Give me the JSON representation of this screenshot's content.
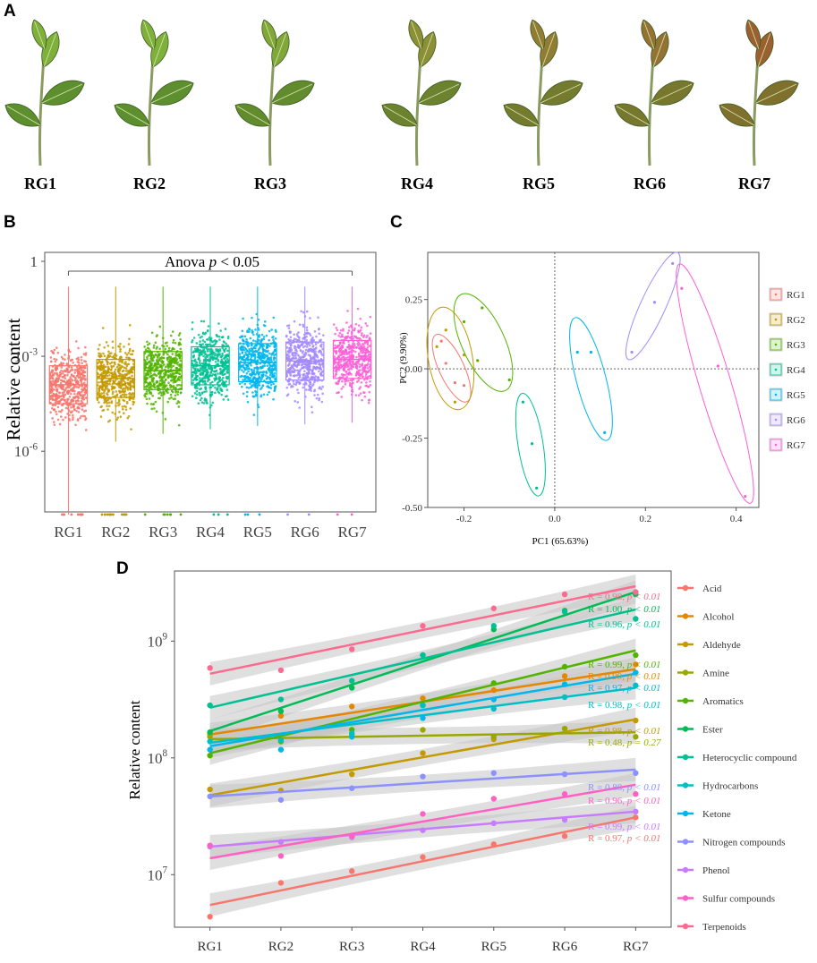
{
  "panels": {
    "a": "A",
    "b": "B",
    "c": "C",
    "d": "D"
  },
  "leaves": [
    "RG1",
    "RG2",
    "RG3",
    "RG4",
    "RG5",
    "RG6",
    "RG7"
  ],
  "groups": [
    "RG1",
    "RG2",
    "RG3",
    "RG4",
    "RG5",
    "RG6",
    "RG7"
  ],
  "colors": {
    "groups": [
      "#f8766d",
      "#c49a00",
      "#53b400",
      "#00c094",
      "#00b6eb",
      "#a58aff",
      "#fb61d7"
    ],
    "leaf_green": "#5e8f2e",
    "leaf_red": "#a0522d",
    "ci_band": "#c4c4c4"
  },
  "chart_data": [
    {
      "panel": "B",
      "type": "scatter",
      "title": "",
      "ylabel": "Relative content",
      "xlabel": "",
      "categories": [
        "RG1",
        "RG2",
        "RG3",
        "RG4",
        "RG5",
        "RG6",
        "RG7"
      ],
      "yscale": "log10",
      "ytick_labels": [
        "1",
        "10^-3",
        "10^-6"
      ],
      "yticks_log10": [
        0,
        -3,
        -6
      ],
      "median_log10": [
        -3.9,
        -3.7,
        -3.45,
        -3.3,
        -3.2,
        -3.15,
        -3.1
      ],
      "annotation": "Anova p < 0.05",
      "annotation_parts": {
        "prefix": "Anova ",
        "italic": "p",
        "suffix": " < 0.05"
      }
    },
    {
      "panel": "C",
      "type": "scatter",
      "xlabel": "PC1 (65.63%)",
      "ylabel": "PC2 (9.90%)",
      "xlim": [
        -0.28,
        0.45
      ],
      "ylim": [
        -0.5,
        0.42
      ],
      "xticks": [
        -0.2,
        0.0,
        0.2,
        0.4
      ],
      "xtick_labels": [
        "-0.2",
        "0.0",
        "0.2",
        "0.4"
      ],
      "yticks": [
        0.25,
        0.0,
        -0.25,
        -0.5
      ],
      "ytick_labels": [
        "0.25",
        "0.00",
        "-0.25",
        "-0.50"
      ],
      "legend": [
        "RG1",
        "RG2",
        "RG3",
        "RG4",
        "RG5",
        "RG6",
        "RG7"
      ],
      "series": [
        {
          "name": "RG1",
          "points": [
            [
              -0.25,
              0.1
            ],
            [
              -0.22,
              -0.05
            ],
            [
              -0.2,
              -0.06
            ],
            [
              -0.24,
              0.02
            ]
          ]
        },
        {
          "name": "RG2",
          "points": [
            [
              -0.26,
              0.08
            ],
            [
              -0.22,
              -0.12
            ],
            [
              -0.2,
              0.05
            ],
            [
              -0.24,
              0.14
            ]
          ]
        },
        {
          "name": "RG3",
          "points": [
            [
              -0.2,
              0.17
            ],
            [
              -0.16,
              0.22
            ],
            [
              -0.1,
              -0.04
            ],
            [
              -0.17,
              0.03
            ]
          ]
        },
        {
          "name": "RG4",
          "points": [
            [
              -0.07,
              -0.12
            ],
            [
              -0.05,
              -0.27
            ],
            [
              -0.04,
              -0.43
            ]
          ]
        },
        {
          "name": "RG5",
          "points": [
            [
              0.05,
              0.06
            ],
            [
              0.08,
              0.06
            ],
            [
              0.11,
              -0.23
            ]
          ]
        },
        {
          "name": "RG6",
          "points": [
            [
              0.17,
              0.06
            ],
            [
              0.22,
              0.24
            ],
            [
              0.26,
              0.38
            ]
          ]
        },
        {
          "name": "RG7",
          "points": [
            [
              0.28,
              0.29
            ],
            [
              0.36,
              0.01
            ],
            [
              0.42,
              -0.46
            ]
          ]
        }
      ]
    },
    {
      "panel": "D",
      "type": "line",
      "ylabel": "Relative content",
      "xlabel": "",
      "categories": [
        "RG1",
        "RG2",
        "RG3",
        "RG4",
        "RG5",
        "RG6",
        "RG7"
      ],
      "yscale": "log10",
      "ytick_labels": [
        "10^9",
        "10^8",
        "10^7"
      ],
      "yticks_log10": [
        9,
        8,
        7
      ],
      "series": [
        {
          "name": "Acid",
          "color": "#f8766d",
          "start": 6.74,
          "end": 7.49,
          "r": "R = 0.97, ",
          "p": "p < 0.01",
          "label_order": 12,
          "points": [
            6.64,
            6.93,
            7.03,
            7.15,
            7.26,
            7.33,
            7.49
          ]
        },
        {
          "name": "Alcohol",
          "color": "#e58700",
          "start": 8.2,
          "end": 8.76,
          "r": "R = 0.99, ",
          "p": "p < 0.01",
          "label_order": 5,
          "points": [
            8.2,
            8.36,
            8.44,
            8.51,
            8.58,
            8.7,
            8.8
          ]
        },
        {
          "name": "Aldehyde",
          "color": "#c49a00",
          "start": 7.68,
          "end": 8.33,
          "r": "R = 0.98, ",
          "p": "p < 0.01",
          "label_order": 8,
          "points": [
            7.73,
            7.72,
            7.86,
            8.04,
            8.16,
            8.25,
            8.32
          ]
        },
        {
          "name": "Amine",
          "color": "#99a800",
          "start": 8.16,
          "end": 8.22,
          "r": "R = 0.48, ",
          "p": "p = 0.27",
          "label_order": 9,
          "points": [
            8.18,
            8.15,
            8.2,
            8.24,
            8.18,
            8.25,
            8.18
          ]
        },
        {
          "name": "Aromatics",
          "color": "#53b400",
          "start": 8.04,
          "end": 8.92,
          "r": "R = 0.99, ",
          "p": "p < 0.01",
          "label_order": 4,
          "points": [
            8.02,
            8.14,
            8.24,
            8.45,
            8.64,
            8.78,
            8.88
          ]
        },
        {
          "name": "Ester",
          "color": "#00bc56",
          "start": 8.23,
          "end": 9.42,
          "r": "R = 1.00, ",
          "p": "p < 0.01",
          "label_order": 2,
          "points": [
            8.22,
            8.4,
            8.6,
            8.88,
            9.1,
            9.26,
            9.4
          ]
        },
        {
          "name": "Heterocyclic compound",
          "color": "#00c094",
          "start": 8.43,
          "end": 9.27,
          "r": "R = 0.96, ",
          "p": "p < 0.01",
          "label_order": 3,
          "points": [
            8.45,
            8.5,
            8.66,
            8.88,
            9.13,
            9.25,
            9.19
          ]
        },
        {
          "name": "Hydrocarbons",
          "color": "#00bfc4",
          "start": 8.13,
          "end": 8.6,
          "r": "R = 0.98, ",
          "p": "p < 0.01",
          "label_order": 7,
          "points": [
            8.14,
            8.15,
            8.21,
            8.45,
            8.42,
            8.52,
            8.62
          ]
        },
        {
          "name": "Ketone",
          "color": "#00b6eb",
          "start": 8.1,
          "end": 8.72,
          "r": "R = 0.97, ",
          "p": "p < 0.01",
          "label_order": 6,
          "points": [
            8.07,
            8.07,
            8.18,
            8.34,
            8.5,
            8.63,
            8.73
          ]
        },
        {
          "name": "Nitrogen compounds",
          "color": "#8d90ff",
          "start": 7.67,
          "end": 7.9,
          "r": "R = 0.88, ",
          "p": "p < 0.01",
          "label_order": 10,
          "points": [
            7.67,
            7.64,
            7.74,
            7.84,
            7.87,
            7.86,
            7.87
          ]
        },
        {
          "name": "Phenol",
          "color": "#c77cff",
          "start": 7.24,
          "end": 7.54,
          "r": "R = 0.99, ",
          "p": "p < 0.01",
          "label_order": 11,
          "points": [
            7.24,
            7.28,
            7.32,
            7.38,
            7.44,
            7.47,
            7.54
          ]
        },
        {
          "name": "Sulfur compounds",
          "color": "#ff61c3",
          "start": 7.14,
          "end": 7.77,
          "r": "R = 0.96, ",
          "p": "p < 0.01",
          "label_order": 10.5,
          "points": [
            7.25,
            7.16,
            7.33,
            7.52,
            7.65,
            7.69,
            7.69
          ]
        },
        {
          "name": "Terpenoids",
          "color": "#fd6a8f",
          "start": 8.72,
          "end": 9.47,
          "r": "R = 0.98, ",
          "p": "p < 0.01",
          "label_order": 1,
          "points": [
            8.77,
            8.75,
            8.93,
            9.13,
            9.28,
            9.4,
            9.42
          ]
        }
      ]
    }
  ]
}
